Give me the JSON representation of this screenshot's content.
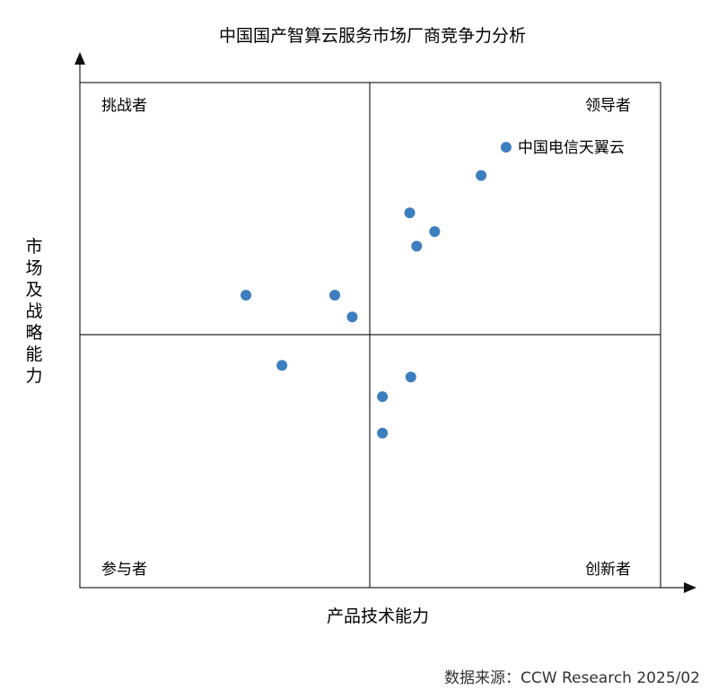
{
  "chart_data": {
    "type": "scatter",
    "title": "中国国产智算云服务市场厂商竞争力分析",
    "xlabel": "产品技术能力",
    "ylabel": "市场及战略能力",
    "xlim": [
      0,
      100
    ],
    "ylim": [
      0,
      100
    ],
    "grid": false,
    "quadrants": {
      "top_left": "挑战者",
      "top_right": "领导者",
      "bottom_left": "参与者",
      "bottom_right": "创新者"
    },
    "color": "#3d7ebf",
    "points": [
      {
        "x": 73.4,
        "y": 87.2,
        "label": "中国电信天翼云"
      },
      {
        "x": 69.1,
        "y": 81.6,
        "label": ""
      },
      {
        "x": 56.8,
        "y": 74.2,
        "label": ""
      },
      {
        "x": 61.1,
        "y": 70.5,
        "label": ""
      },
      {
        "x": 58.0,
        "y": 67.6,
        "label": ""
      },
      {
        "x": 28.6,
        "y": 57.9,
        "label": ""
      },
      {
        "x": 43.9,
        "y": 57.9,
        "label": ""
      },
      {
        "x": 46.9,
        "y": 53.6,
        "label": ""
      },
      {
        "x": 34.8,
        "y": 44.0,
        "label": ""
      },
      {
        "x": 57.0,
        "y": 41.7,
        "label": ""
      },
      {
        "x": 52.1,
        "y": 37.8,
        "label": ""
      },
      {
        "x": 52.1,
        "y": 30.6,
        "label": ""
      }
    ]
  },
  "source_text": "数据来源：CCW Research 2025/02"
}
